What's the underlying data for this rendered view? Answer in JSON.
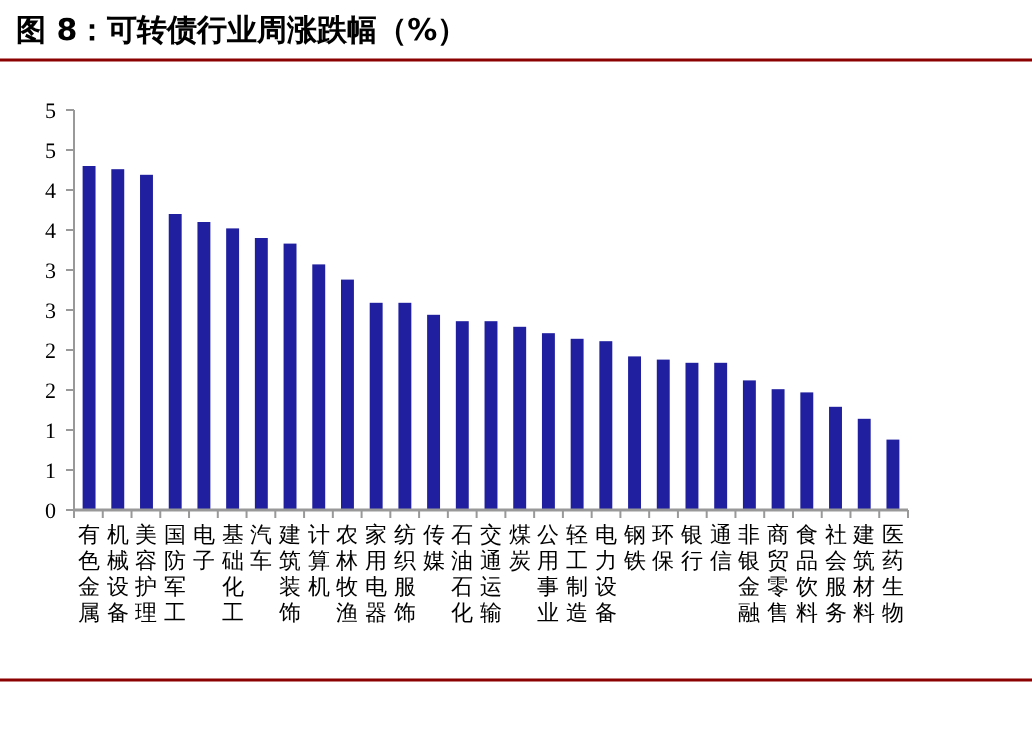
{
  "chart_data": {
    "type": "bar",
    "title": "图 8：可转债行业周涨跌幅（%）",
    "categories": [
      "有色金属",
      "机械设备",
      "美容护理",
      "国防军工",
      "电子",
      "基础化工",
      "汽车",
      "建筑装饰",
      "计算机",
      "农林牧渔",
      "家用电器",
      "纺织服饰",
      "传媒",
      "石油石化",
      "交通运输",
      "煤炭",
      "公用事业",
      "轻工制造",
      "电力设备",
      "钢铁",
      "环保",
      "银行",
      "通信",
      "非银金融",
      "商贸零售",
      "食品饮料",
      "社会服务",
      "建筑材料",
      "医药生物"
    ],
    "values": [
      4.3,
      4.26,
      4.19,
      3.7,
      3.6,
      3.52,
      3.4,
      3.33,
      3.07,
      2.88,
      2.59,
      2.59,
      2.44,
      2.36,
      2.36,
      2.29,
      2.21,
      2.14,
      2.11,
      1.92,
      1.88,
      1.84,
      1.84,
      1.62,
      1.51,
      1.47,
      1.29,
      1.14,
      0.88
    ],
    "color": "#1f1fa0",
    "ylim": [
      0,
      5
    ],
    "yticks": [
      0,
      {
        "value": 0.5,
        "label": "1"
      },
      1,
      {
        "value": 1.5,
        "label": "2"
      },
      2,
      {
        "value": 2.5,
        "label": "3"
      },
      3,
      {
        "value": 3.5,
        "label": "4"
      },
      4,
      {
        "value": 4.5,
        "label": "5"
      },
      5
    ],
    "grid": false
  }
}
